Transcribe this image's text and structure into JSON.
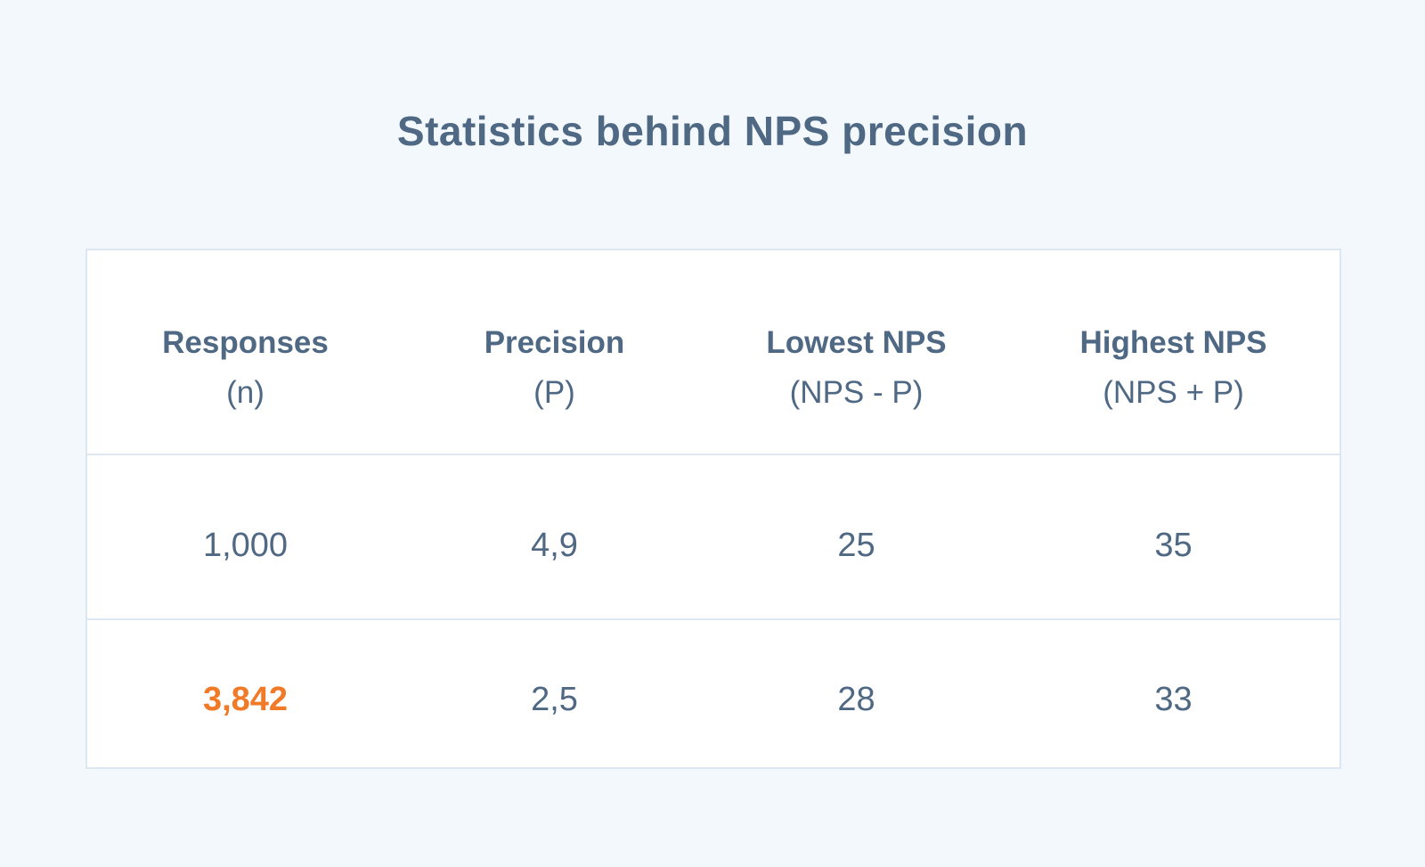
{
  "title": "Statistics behind NPS precision",
  "colors": {
    "background": "#f3f8fd",
    "text": "#4f6883",
    "highlight": "#f07a28",
    "border": "#dde7f1"
  },
  "table": {
    "headers": [
      {
        "main": "Responses",
        "sub": "(n)"
      },
      {
        "main": "Precision",
        "sub": "(P)"
      },
      {
        "main": "Lowest NPS",
        "sub": "(NPS - P)"
      },
      {
        "main": "Highest NPS",
        "sub": "(NPS + P)"
      }
    ],
    "rows": [
      [
        "1,000",
        "4,9",
        "25",
        "35"
      ],
      [
        "3,842",
        "2,5",
        "28",
        "33"
      ]
    ]
  }
}
